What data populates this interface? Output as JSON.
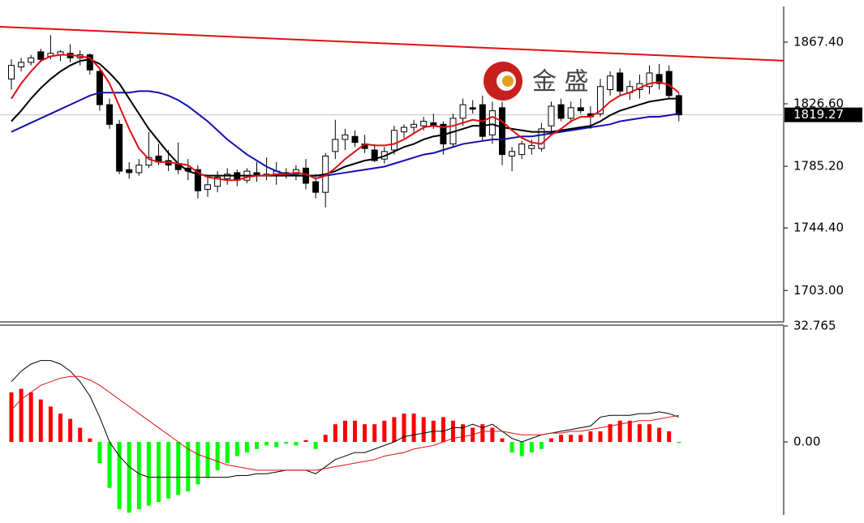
{
  "chart_data": [
    {
      "type": "candlestick",
      "open": [
        1843,
        1851,
        1854,
        1861,
        1858,
        1859,
        1860,
        1857,
        1859,
        1848,
        1826,
        1813,
        1783,
        1781,
        1786,
        1792,
        1789,
        1787,
        1784,
        1783,
        1770,
        1772,
        1777,
        1781,
        1776,
        1781,
        1779,
        1780,
        1781,
        1780,
        1784,
        1775,
        1768,
        1795,
        1803,
        1805,
        1800,
        1796,
        1790,
        1796,
        1808,
        1811,
        1812,
        1814,
        1813,
        1800,
        1817,
        1824,
        1826,
        1806,
        1824,
        1792,
        1793,
        1797,
        1797,
        1812,
        1826,
        1817,
        1824,
        1820,
        1820,
        1836,
        1847,
        1834,
        1836,
        1838,
        1846,
        1848,
        1832
      ],
      "high": [
        1856,
        1857,
        1859,
        1863,
        1872,
        1862,
        1866,
        1862,
        1860,
        1851,
        1830,
        1816,
        1788,
        1790,
        1808,
        1800,
        1796,
        1801,
        1790,
        1786,
        1778,
        1782,
        1784,
        1783,
        1784,
        1788,
        1791,
        1788,
        1784,
        1786,
        1790,
        1780,
        1794,
        1816,
        1810,
        1809,
        1806,
        1800,
        1798,
        1812,
        1813,
        1816,
        1818,
        1820,
        1815,
        1820,
        1830,
        1829,
        1832,
        1828,
        1828,
        1798,
        1802,
        1803,
        1814,
        1828,
        1830,
        1828,
        1830,
        1825,
        1843,
        1848,
        1850,
        1842,
        1846,
        1852,
        1853,
        1852,
        1834
      ],
      "low": [
        1836,
        1848,
        1852,
        1854,
        1856,
        1855,
        1854,
        1852,
        1846,
        1822,
        1810,
        1780,
        1777,
        1779,
        1784,
        1786,
        1782,
        1780,
        1776,
        1764,
        1765,
        1768,
        1773,
        1772,
        1774,
        1775,
        1776,
        1773,
        1777,
        1776,
        1770,
        1764,
        1758,
        1790,
        1796,
        1798,
        1794,
        1788,
        1787,
        1793,
        1804,
        1807,
        1809,
        1810,
        1793,
        1798,
        1812,
        1820,
        1802,
        1800,
        1786,
        1782,
        1790,
        1793,
        1795,
        1808,
        1815,
        1814,
        1820,
        1810,
        1818,
        1832,
        1832,
        1829,
        1830,
        1833,
        1836,
        1830,
        1815
      ],
      "close": [
        1852,
        1854,
        1857,
        1856,
        1860,
        1861,
        1857,
        1859,
        1849,
        1826,
        1813,
        1782,
        1781,
        1786,
        1791,
        1788,
        1786,
        1783,
        1782,
        1769,
        1773,
        1778,
        1780,
        1776,
        1782,
        1779,
        1780,
        1782,
        1779,
        1783,
        1774,
        1768,
        1792,
        1803,
        1806,
        1801,
        1797,
        1789,
        1795,
        1809,
        1811,
        1813,
        1815,
        1812,
        1800,
        1817,
        1826,
        1823,
        1805,
        1822,
        1793,
        1795,
        1800,
        1799,
        1810,
        1825,
        1817,
        1824,
        1822,
        1818,
        1838,
        1845,
        1835,
        1838,
        1840,
        1847,
        1840,
        1832,
        1819.27
      ],
      "up_color": "#ffffff",
      "down_color": "#000000",
      "lines": [
        {
          "color": "#1010b0",
          "values": [
            1808,
            1811,
            1814,
            1817,
            1820,
            1823,
            1826,
            1829,
            1832,
            1834,
            1834,
            1834,
            1834,
            1835,
            1835,
            1834,
            1832,
            1829,
            1825,
            1820,
            1815,
            1809,
            1803,
            1798,
            1793,
            1789,
            1785,
            1782,
            1780,
            1779,
            1779,
            1779,
            1779,
            1780,
            1781,
            1782,
            1783,
            1784,
            1785,
            1787,
            1789,
            1791,
            1793,
            1794,
            1796,
            1798,
            1800,
            1801,
            1802,
            1803,
            1803,
            1804,
            1805,
            1805,
            1806,
            1807,
            1808,
            1809,
            1810,
            1811,
            1812,
            1813,
            1815,
            1816,
            1817,
            1818,
            1818,
            1819,
            1820
          ]
        },
        {
          "color": "#000000",
          "values": [
            1815,
            1822,
            1830,
            1837,
            1843,
            1848,
            1852,
            1855,
            1856,
            1853,
            1847,
            1840,
            1830,
            1820,
            1810,
            1802,
            1794,
            1787,
            1782,
            1780,
            1779,
            1779,
            1779,
            1779,
            1779,
            1779,
            1779,
            1779,
            1779,
            1779,
            1779,
            1779,
            1780,
            1782,
            1785,
            1787,
            1789,
            1790,
            1792,
            1795,
            1798,
            1800,
            1803,
            1805,
            1806,
            1808,
            1810,
            1812,
            1812,
            1813,
            1811,
            1810,
            1809,
            1808,
            1808,
            1808,
            1809,
            1810,
            1811,
            1812,
            1815,
            1819,
            1822,
            1824,
            1826,
            1828,
            1829,
            1830,
            1830
          ]
        },
        {
          "color": "#e01010",
          "values": [
            1830,
            1840,
            1848,
            1855,
            1858,
            1859,
            1859,
            1858,
            1857,
            1850,
            1840,
            1825,
            1810,
            1797,
            1790,
            1788,
            1788,
            1787,
            1786,
            1781,
            1778,
            1777,
            1776,
            1776,
            1778,
            1779,
            1779,
            1780,
            1780,
            1781,
            1780,
            1777,
            1779,
            1784,
            1790,
            1795,
            1800,
            1799,
            1799,
            1800,
            1803,
            1807,
            1811,
            1812,
            1811,
            1812,
            1814,
            1816,
            1815,
            1818,
            1815,
            1809,
            1804,
            1801,
            1800,
            1806,
            1810,
            1815,
            1818,
            1818,
            1822,
            1828,
            1832,
            1834,
            1837,
            1840,
            1841,
            1839,
            1834
          ]
        }
      ],
      "trendline": {
        "color": "#e01010",
        "values": [
          1877.6,
          1855.1
        ]
      },
      "last_price": 1819.27,
      "watermark": "金 盛",
      "ylim": [
        1682.2,
        1895.3
      ],
      "yticks": [
        {
          "value": 1703.0,
          "label": "1703.00"
        },
        {
          "value": 1744.4,
          "label": "1744.40"
        },
        {
          "value": 1785.2,
          "label": "1785.20"
        },
        {
          "value": 1826.6,
          "label": "1826.60"
        },
        {
          "value": 1867.4,
          "label": "1867.40"
        }
      ]
    },
    {
      "type": "macd",
      "histogram": [
        14,
        15,
        14,
        12,
        10,
        8,
        6.5,
        4,
        1,
        -6,
        -13,
        -19,
        -20,
        -19,
        -18,
        -17,
        -16,
        -15,
        -14,
        -12,
        -10,
        -8,
        -6,
        -4,
        -3,
        -2,
        -1,
        -1.5,
        -0.5,
        -1,
        0.5,
        -2,
        2,
        5,
        6,
        6,
        5,
        5,
        6,
        7,
        8,
        8,
        7,
        6,
        7,
        6,
        5,
        4,
        5,
        4,
        1,
        -3,
        -4,
        -3,
        -2,
        1,
        2,
        2,
        2,
        3,
        3,
        5,
        6,
        6,
        5,
        5,
        4,
        3,
        -0.3
      ],
      "positive_color": "#ff0000",
      "negative_color": "#00ff00",
      "lines": [
        {
          "color": "#000000",
          "values": [
            17,
            20,
            22,
            23,
            23,
            22,
            20,
            17,
            13,
            7,
            0,
            -4,
            -7,
            -9,
            -10,
            -10,
            -10,
            -10,
            -10,
            -10,
            -10,
            -10,
            -10,
            -9.5,
            -9.5,
            -9,
            -9,
            -8.5,
            -8,
            -8,
            -8,
            -9,
            -7,
            -5,
            -4,
            -3,
            -3,
            -2,
            -1,
            0,
            1.5,
            2,
            2.5,
            3,
            3,
            4,
            4,
            5,
            4,
            5,
            3,
            1,
            0,
            1,
            2,
            2.5,
            3,
            3.5,
            4,
            4.5,
            7,
            7.5,
            7.5,
            7.5,
            8,
            8,
            8.5,
            8,
            7
          ]
        },
        {
          "color": "#e01010",
          "values": [
            9,
            12,
            14,
            16,
            17,
            18,
            18.5,
            18.5,
            17.5,
            16,
            14,
            12,
            10,
            8,
            6,
            4,
            2,
            0,
            -2,
            -3.5,
            -4.5,
            -5.5,
            -6.5,
            -7,
            -7.5,
            -8,
            -8,
            -8,
            -8,
            -8,
            -8,
            -8,
            -7.5,
            -7,
            -6.5,
            -6,
            -5.5,
            -5,
            -4,
            -3.5,
            -3,
            -2,
            -1.5,
            -1,
            0,
            1,
            1.5,
            2,
            3,
            3,
            3,
            2.5,
            2,
            2,
            2,
            2.5,
            2.5,
            3,
            3,
            3.5,
            4,
            4.5,
            5,
            5.5,
            6,
            6,
            6.5,
            7,
            7.5
          ]
        }
      ],
      "ylim": [
        -21.77,
        32.765
      ],
      "yticks": [
        {
          "value": 0,
          "label": "0.00"
        },
        32.765
      ]
    }
  ]
}
